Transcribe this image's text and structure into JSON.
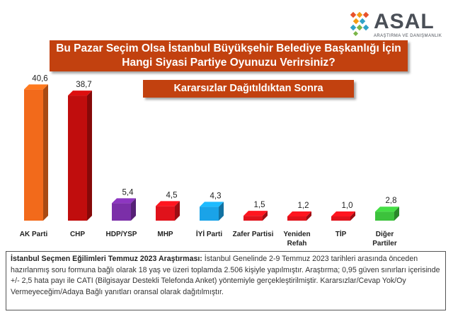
{
  "brand": {
    "name": "ASAL",
    "tagline": "ARAŞTIRMA VE DANIŞMANLIK",
    "colors": [
      "#e8512a",
      "#f39c12",
      "#2fa3c7",
      "#7ab648"
    ]
  },
  "header": {
    "title_line1": "Bu Pazar Seçim Olsa İstanbul Büyükşehir Belediye Başkanlığı İçin",
    "title_line2": "Hangi Siyasi Partiye Oyunuzu Verirsiniz?",
    "subtitle": "Kararsızlar Dağıtıldıktan Sonra",
    "box_color": "#c2410f"
  },
  "chart_data": {
    "type": "bar",
    "title": "Bu Pazar Seçim Olsa İstanbul Büyükşehir Belediye Başkanlığı İçin Hangi Siyasi Partiye Oyunuzu Verirsiniz?",
    "subtitle": "Kararsızlar Dağıtıldıktan Sonra",
    "categories": [
      [
        "AK Parti"
      ],
      [
        "CHP"
      ],
      [
        "HDP/YSP"
      ],
      [
        "MHP"
      ],
      [
        "İYİ Parti"
      ],
      [
        "Zafer Partisi"
      ],
      [
        "Yeniden",
        "Refah"
      ],
      [
        "TİP"
      ],
      [
        "Diğer",
        "Partiler"
      ]
    ],
    "value_labels": [
      "40,6",
      "38,7",
      "5,4",
      "4,5",
      "4,3",
      "1,5",
      "1,2",
      "1,0",
      "2,8"
    ],
    "values": [
      40.6,
      38.7,
      5.4,
      4.5,
      4.3,
      1.5,
      1.2,
      1.0,
      2.8
    ],
    "colors": [
      "#f26a1b",
      "#c00d0d",
      "#7b2fa8",
      "#e0121b",
      "#1aa3e8",
      "#e0121b",
      "#e0121b",
      "#e0121b",
      "#3cc23c"
    ],
    "ylim": [
      0,
      42
    ],
    "grid": false,
    "legend": "none",
    "xlabel": "",
    "ylabel": ""
  },
  "note": {
    "heading": "İstanbul Seçmen Eğilimleri Temmuz 2023 Araştırması:",
    "body": " İstanbul Genelinde 2-9 Temmuz 2023 tarihleri arasında önceden hazırlanmış soru formuna bağlı olarak 18 yaş ve üzeri toplamda 2.506 kişiyle yapılmıştır. Araştırma; 0,95 güven sınırları içerisinde +/- 2,5 hata payı ile CATI (Bilgisayar Destekli Telefonda Anket) yöntemiyle gerçekleştirilmiştir. Kararsızlar/Cevap Yok/Oy Vermeyeceğim/Adaya Bağlı yanıtları oransal olarak dağıtılmıştır."
  }
}
